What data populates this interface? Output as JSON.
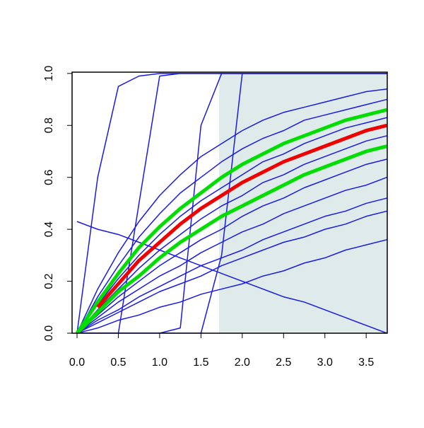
{
  "chart_data": {
    "type": "line",
    "x": [
      0,
      0.25,
      0.5,
      0.75,
      1,
      1.25,
      1.5,
      1.75,
      2,
      2.25,
      2.5,
      2.75,
      3,
      3.25,
      3.5,
      3.75
    ],
    "xlim": [
      -0.06,
      3.755
    ],
    "ylim": [
      0,
      1.005
    ],
    "xticks": [
      {
        "value": 0,
        "label": "0.0"
      },
      0.5,
      {
        "value": 1,
        "label": "1.0"
      },
      1.5,
      {
        "value": 2,
        "label": "2.0"
      },
      2.5,
      {
        "value": 3,
        "label": "3.0"
      },
      3.5
    ],
    "yticks": [
      {
        "value": 0,
        "label": "0.0"
      },
      0.2,
      0.4,
      0.6,
      0.8,
      {
        "value": 1,
        "label": "1.0"
      }
    ],
    "shaded_region": {
      "x": [
        1.72,
        3.755
      ],
      "y": [
        0,
        1
      ],
      "color": "#dfeaea"
    },
    "series": [
      {
        "color": "#1a1ae6",
        "width": 1.5,
        "values": [
          0,
          0.6,
          0.95,
          0.99,
          1,
          1,
          1,
          1,
          1,
          1,
          1,
          1,
          1,
          1,
          1,
          1
        ]
      },
      {
        "color": "#1a1ae6",
        "width": 1.5,
        "values": [
          0,
          0,
          0,
          0.5,
          0.99,
          1,
          1,
          1,
          1,
          1,
          1,
          1,
          1,
          1,
          1,
          1
        ]
      },
      {
        "color": "#1a1ae6",
        "width": 1.5,
        "values": [
          0,
          0,
          0,
          0,
          0,
          0.02,
          0.8,
          1,
          1,
          1,
          1,
          1,
          1,
          1,
          1,
          1
        ]
      },
      {
        "color": "#1a1ae6",
        "width": 1.5,
        "values": [
          0,
          0,
          0,
          0,
          0,
          0,
          0,
          0.3,
          1,
          1,
          1,
          1,
          1,
          1,
          1,
          1
        ]
      },
      {
        "color": "#1a1ae6",
        "width": 1.5,
        "values": [
          0,
          0.17,
          0.31,
          0.43,
          0.53,
          0.61,
          0.68,
          0.73,
          0.78,
          0.82,
          0.85,
          0.87,
          0.89,
          0.91,
          0.93,
          0.94
        ]
      },
      {
        "color": "#1a1ae6",
        "width": 1.5,
        "values": [
          0,
          0.14,
          0.26,
          0.37,
          0.46,
          0.54,
          0.6,
          0.66,
          0.71,
          0.75,
          0.78,
          0.82,
          0.84,
          0.86,
          0.88,
          0.9
        ]
      },
      {
        "color": "#1a1ae6",
        "width": 1.5,
        "values": [
          0,
          0.11,
          0.21,
          0.3,
          0.38,
          0.45,
          0.51,
          0.56,
          0.61,
          0.66,
          0.69,
          0.73,
          0.76,
          0.79,
          0.81,
          0.83
        ]
      },
      {
        "color": "#1a1ae6",
        "width": 1.5,
        "values": [
          0,
          0.09,
          0.17,
          0.25,
          0.32,
          0.38,
          0.44,
          0.49,
          0.53,
          0.58,
          0.61,
          0.65,
          0.68,
          0.71,
          0.74,
          0.76
        ]
      },
      {
        "color": "#1a1ae6",
        "width": 1.5,
        "values": [
          0,
          0.07,
          0.14,
          0.2,
          0.26,
          0.31,
          0.36,
          0.4,
          0.45,
          0.49,
          0.52,
          0.56,
          0.59,
          0.62,
          0.65,
          0.67
        ]
      },
      {
        "color": "#1a1ae6",
        "width": 1.5,
        "values": [
          0,
          0.06,
          0.12,
          0.17,
          0.22,
          0.26,
          0.31,
          0.35,
          0.39,
          0.42,
          0.46,
          0.49,
          0.52,
          0.55,
          0.57,
          0.6
        ]
      },
      {
        "color": "#1a1ae6",
        "width": 1.5,
        "values": [
          0,
          0.05,
          0.09,
          0.14,
          0.18,
          0.22,
          0.26,
          0.29,
          0.32,
          0.36,
          0.39,
          0.42,
          0.45,
          0.47,
          0.5,
          0.52
        ]
      },
      {
        "color": "#1a1ae6",
        "width": 1.5,
        "values": [
          0,
          0.04,
          0.08,
          0.12,
          0.16,
          0.19,
          0.22,
          0.26,
          0.29,
          0.32,
          0.35,
          0.37,
          0.4,
          0.42,
          0.45,
          0.47
        ]
      },
      {
        "color": "#1a1ae6",
        "width": 1.5,
        "values": [
          0,
          0.02,
          0.05,
          0.07,
          0.1,
          0.12,
          0.15,
          0.17,
          0.19,
          0.22,
          0.24,
          0.27,
          0.29,
          0.32,
          0.34,
          0.36
        ]
      },
      {
        "color": "#1a1ae6",
        "width": 1.5,
        "values": [
          0.43,
          0.4,
          0.38,
          0.35,
          0.32,
          0.29,
          0.26,
          0.23,
          0.2,
          0.17,
          0.14,
          0.12,
          0.09,
          0.06,
          0.03,
          0
        ]
      },
      {
        "color": "#00dd00",
        "width": 5,
        "values": [
          0,
          0.12,
          0.23,
          0.33,
          0.41,
          0.48,
          0.54,
          0.6,
          0.65,
          0.69,
          0.73,
          0.76,
          0.79,
          0.82,
          0.84,
          0.86
        ]
      },
      {
        "color": "#00dd00",
        "width": 5,
        "values": [
          0,
          0.08,
          0.16,
          0.22,
          0.29,
          0.35,
          0.4,
          0.45,
          0.49,
          0.53,
          0.57,
          0.61,
          0.64,
          0.67,
          0.7,
          0.72
        ]
      },
      {
        "color": "#ee0000",
        "width": 5,
        "values": [
          null,
          0.1,
          0.19,
          0.28,
          0.35,
          0.42,
          0.48,
          0.53,
          0.58,
          0.62,
          0.66,
          0.69,
          0.72,
          0.75,
          0.78,
          0.8
        ]
      }
    ]
  }
}
